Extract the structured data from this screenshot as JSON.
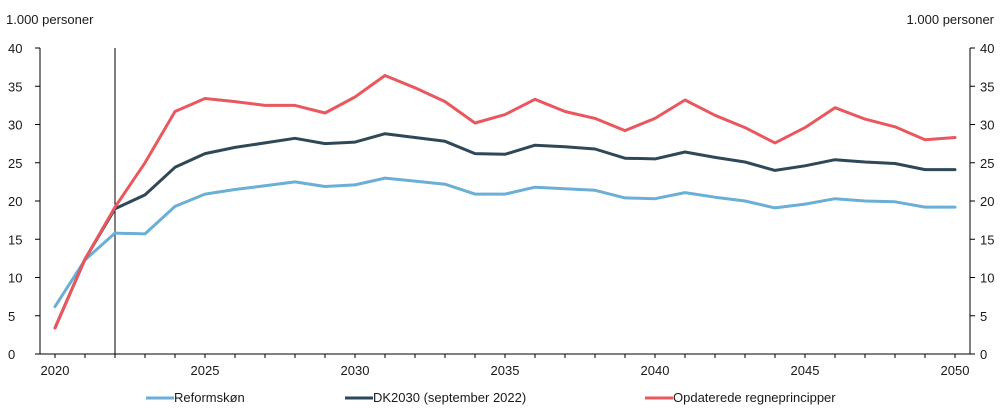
{
  "chart_data": {
    "type": "line",
    "y_unit_left": "1.000 personer",
    "y_unit_right": "1.000 personer",
    "x": [
      2020,
      2021,
      2022,
      2023,
      2024,
      2025,
      2026,
      2027,
      2028,
      2029,
      2030,
      2031,
      2032,
      2033,
      2034,
      2035,
      2036,
      2037,
      2038,
      2039,
      2040,
      2041,
      2042,
      2043,
      2044,
      2045,
      2046,
      2047,
      2048,
      2049,
      2050
    ],
    "x_ticks": [
      "2020",
      "2025",
      "2030",
      "2035",
      "2040",
      "2045",
      "2050"
    ],
    "ylim": [
      0,
      40
    ],
    "y_ticks": [
      "0",
      "5",
      "10",
      "15",
      "20",
      "25",
      "30",
      "35",
      "40"
    ],
    "vertical_marker_x": 2022,
    "grid": false,
    "legend_position": "bottom",
    "series": [
      {
        "name": "Reformskøn",
        "color": "#6baed6",
        "values": [
          6.2,
          12.3,
          15.8,
          15.7,
          19.3,
          20.9,
          21.5,
          22.0,
          22.5,
          21.9,
          22.1,
          23.0,
          22.6,
          22.2,
          20.9,
          20.9,
          21.8,
          21.6,
          21.4,
          20.4,
          20.3,
          21.1,
          20.5,
          20.0,
          19.1,
          19.6,
          20.3,
          20.0,
          19.9,
          19.2,
          19.2
        ]
      },
      {
        "name": "DK2030 (september 2022)",
        "color": "#2f4858",
        "values": [
          3.4,
          12.4,
          19.0,
          20.8,
          24.4,
          26.2,
          27.0,
          27.6,
          28.2,
          27.5,
          27.7,
          28.8,
          28.3,
          27.8,
          26.2,
          26.1,
          27.3,
          27.1,
          26.8,
          25.6,
          25.5,
          26.4,
          25.7,
          25.1,
          24.0,
          24.6,
          25.4,
          25.1,
          24.9,
          24.1,
          24.1
        ]
      },
      {
        "name": "Opdaterede regneprincipper",
        "color": "#e8585e",
        "values": [
          3.4,
          12.4,
          19.2,
          25.0,
          31.7,
          33.4,
          33.0,
          32.5,
          32.5,
          31.5,
          33.6,
          36.4,
          34.8,
          33.0,
          30.2,
          31.3,
          33.3,
          31.7,
          30.8,
          29.2,
          30.8,
          33.2,
          31.2,
          29.6,
          27.6,
          29.6,
          32.2,
          30.7,
          29.7,
          28.0,
          28.3
        ]
      }
    ]
  }
}
